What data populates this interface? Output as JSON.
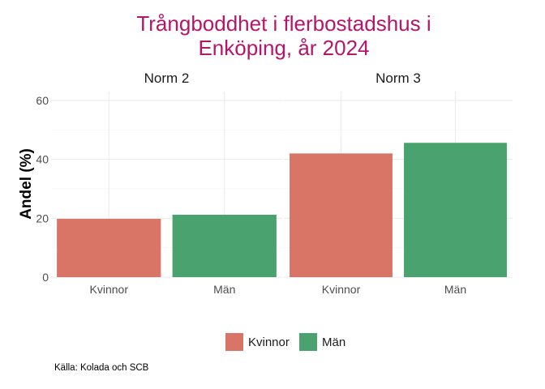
{
  "chart_data": {
    "type": "bar",
    "title_lines": [
      "Trångboddhet i flerbostadshus i",
      "Enköping, år 2024"
    ],
    "ylabel": "Andel (%)",
    "xlabel": "",
    "ylim": [
      0,
      63
    ],
    "yticks": [
      "0",
      "20",
      "40",
      "60"
    ],
    "ytick_values": [
      0,
      20,
      40,
      60
    ],
    "grid": true,
    "legend_position": "bottom",
    "categories": [
      "Kvinnor",
      "Män"
    ],
    "colors": {
      "Kvinnor": "#d97567",
      "Män": "#4aa36e",
      "title": "#b5166b"
    },
    "panels": [
      {
        "label": "Norm 2",
        "values": [
          19.8,
          21.2
        ]
      },
      {
        "label": "Norm 3",
        "values": [
          42.0,
          45.6
        ]
      }
    ],
    "legend": [
      "Kvinnor",
      "Män"
    ],
    "caption": "Källa: Kolada och SCB"
  }
}
